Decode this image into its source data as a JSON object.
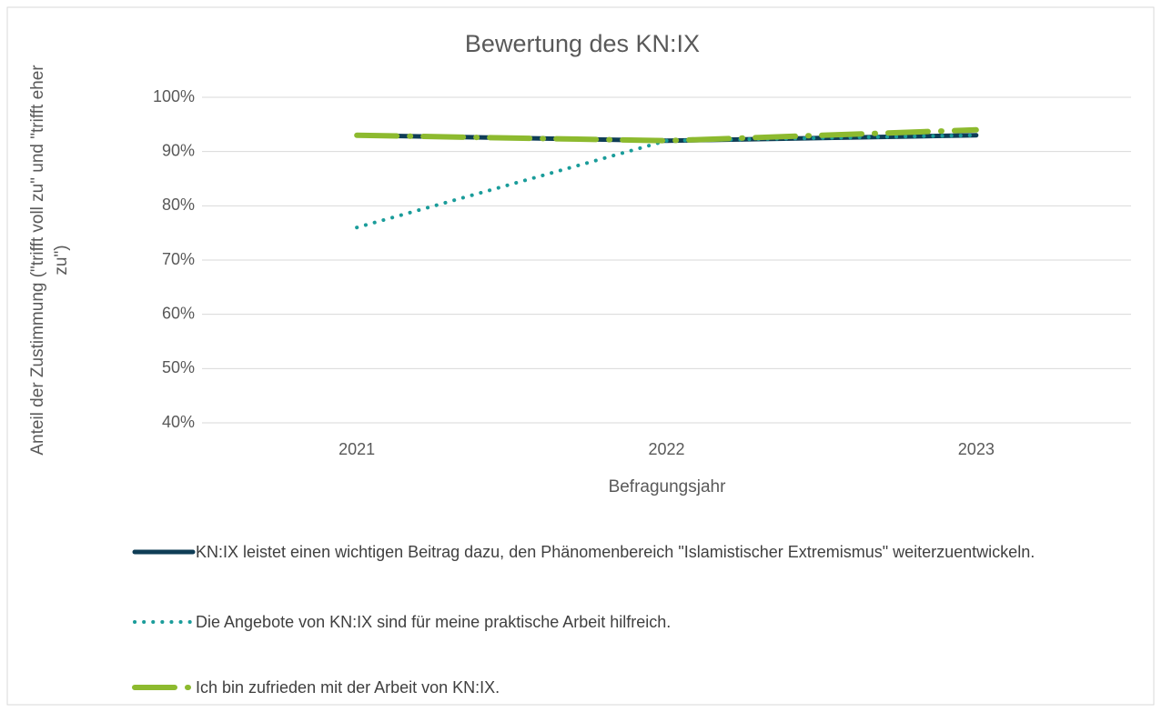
{
  "chart_data": {
    "type": "line",
    "title": "Bewertung des KN:IX",
    "x_label": "Befragungsjahr",
    "y_label": [
      "Anteil der Zustimmung (\"trifft voll zu\" und \"trifft eher",
      "zu\")"
    ],
    "categories": [
      "2021",
      "2022",
      "2023"
    ],
    "series": [
      {
        "name": "KN:IX leistet einen wichtigen Beitrag dazu, den Phänomenbereich \"Islamistischer Extremismus\" weiterzuentwickeln.",
        "color": "#0f3d56",
        "dash": "solid",
        "values": [
          93,
          92,
          93
        ]
      },
      {
        "name": "Die Angebote von KN:IX sind für meine praktische Arbeit hilfreich.",
        "color": "#1a9c9a",
        "dash": "dot",
        "values": [
          76,
          92,
          93
        ]
      },
      {
        "name": "Ich bin zufrieden mit der Arbeit von KN:IX.",
        "color": "#8dba2f",
        "dash": "dashdot",
        "values": [
          93,
          92,
          94
        ]
      }
    ],
    "ylim": [
      40,
      100
    ],
    "yticks": [
      {
        "value": 40,
        "label": "40%"
      },
      {
        "value": 50,
        "label": "50%"
      },
      {
        "value": 60,
        "label": "60%"
      },
      {
        "value": 70,
        "label": "70%"
      },
      {
        "value": 80,
        "label": "80%"
      },
      {
        "value": 90,
        "label": "90%"
      },
      {
        "value": 100,
        "label": "100%"
      }
    ],
    "grid": true,
    "legend": "bottom"
  }
}
